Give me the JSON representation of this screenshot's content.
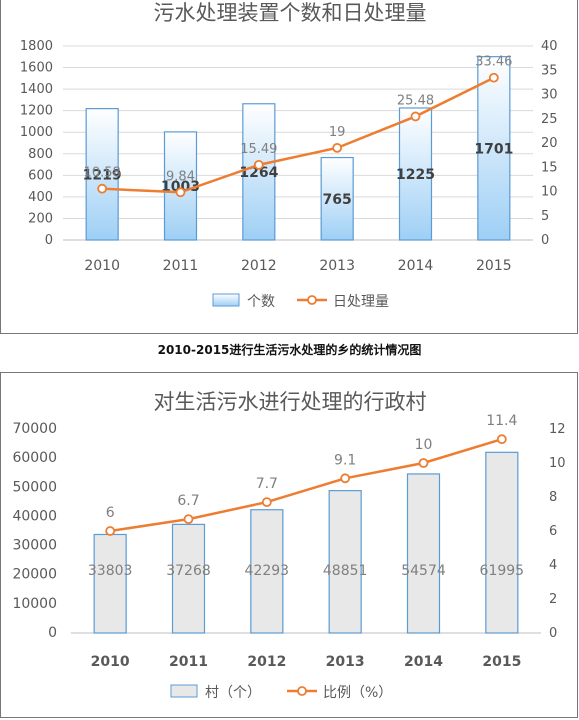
{
  "caption": "2010-2015进行生活污水处理的乡的统计情况图",
  "chart_data": [
    {
      "type": "bar+line",
      "title": "污水处理装置个数和日处理量",
      "categories": [
        "2010",
        "2011",
        "2012",
        "2013",
        "2014",
        "2015"
      ],
      "series": [
        {
          "name": "个数",
          "type": "bar",
          "axis": "left",
          "values": [
            1219,
            1003,
            1264,
            765,
            1225,
            1701
          ]
        },
        {
          "name": "日处理量",
          "type": "line",
          "axis": "right",
          "values": [
            10.58,
            9.84,
            15.49,
            19,
            25.48,
            33.46
          ],
          "labels": [
            "10.58",
            "9.84",
            "15.49",
            "19",
            "25.48",
            "33.46"
          ]
        }
      ],
      "y_left": {
        "min": 0,
        "max": 1800,
        "ticks": [
          0,
          200,
          400,
          600,
          800,
          1000,
          1200,
          1400,
          1600,
          1800
        ]
      },
      "y_right": {
        "min": 0,
        "max": 40,
        "ticks": [
          0,
          5,
          10,
          15,
          20,
          25,
          30,
          35,
          40
        ]
      },
      "grid": true,
      "legend": "bottom",
      "colors": {
        "bar_fill_top": "#ffffff",
        "bar_fill_bottom": "#9ecff5",
        "bar_stroke": "#5b9bd5",
        "line": "#ed7d31",
        "marker_fill": "#ffffff"
      }
    },
    {
      "type": "bar+line",
      "title": "对生活污水进行处理的行政村",
      "categories": [
        "2010",
        "2011",
        "2012",
        "2013",
        "2014",
        "2015"
      ],
      "series": [
        {
          "name": "村（个）",
          "type": "bar",
          "axis": "left",
          "values": [
            33803,
            37268,
            42293,
            48851,
            54574,
            61995
          ]
        },
        {
          "name": "比例（%）",
          "type": "line",
          "axis": "right",
          "values": [
            6,
            6.7,
            7.7,
            9.1,
            10,
            11.4
          ],
          "labels": [
            "6",
            "6.7",
            "7.7",
            "9.1",
            "10",
            "11.4"
          ]
        }
      ],
      "y_left": {
        "min": 0,
        "max": 70000,
        "ticks": [
          0,
          10000,
          20000,
          30000,
          40000,
          50000,
          60000,
          70000
        ]
      },
      "y_right": {
        "min": 0,
        "max": 12,
        "ticks": [
          0,
          2,
          4,
          6,
          8,
          10,
          12
        ]
      },
      "grid": false,
      "legend": "bottom",
      "colors": {
        "bar_fill": "#e8e8e8",
        "bar_stroke": "#5b9bd5",
        "line": "#ed7d31",
        "marker_fill": "#ffffff"
      }
    }
  ]
}
